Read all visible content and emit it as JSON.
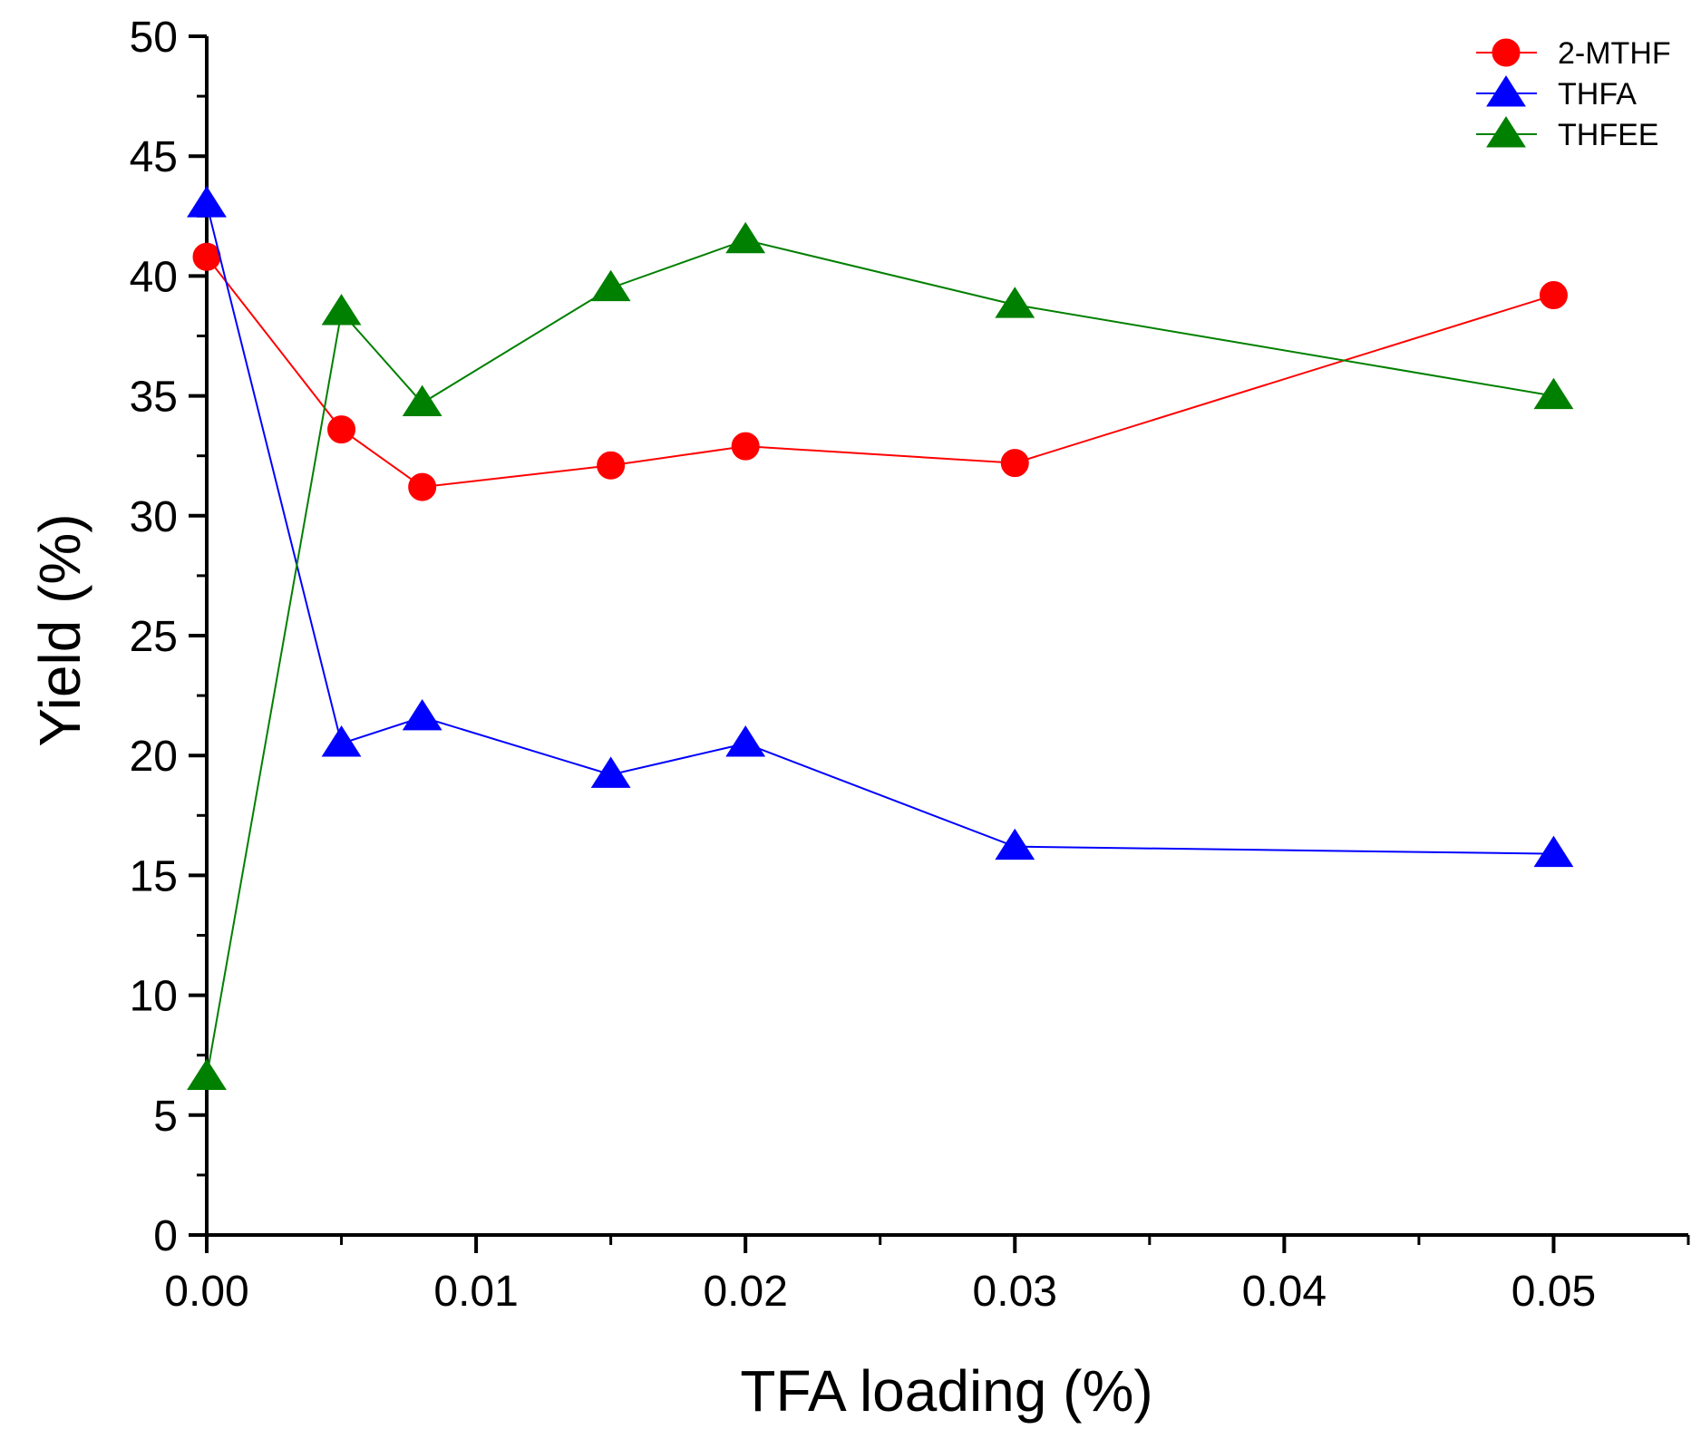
{
  "chart_data": {
    "type": "line",
    "title": "",
    "xlabel": "TFA loading (%)",
    "ylabel": "Yield (%)",
    "xlim": [
      0.0,
      0.055
    ],
    "ylim": [
      0,
      50
    ],
    "x_ticks": [
      0.0,
      0.01,
      0.02,
      0.03,
      0.04,
      0.05
    ],
    "x_tick_labels": [
      "0.00",
      "0.01",
      "0.02",
      "0.03",
      "0.04",
      "0.05"
    ],
    "x_minor_ticks": [
      0.005,
      0.015,
      0.025,
      0.035,
      0.045,
      0.055
    ],
    "y_ticks": [
      0,
      5,
      10,
      15,
      20,
      25,
      30,
      35,
      40,
      45,
      50
    ],
    "y_tick_labels": [
      "0",
      "5",
      "10",
      "15",
      "20",
      "25",
      "30",
      "35",
      "40",
      "45",
      "50"
    ],
    "y_minor_ticks": [
      2.5,
      7.5,
      12.5,
      17.5,
      22.5,
      27.5,
      32.5,
      37.5,
      42.5,
      47.5
    ],
    "grid": false,
    "legend_position": "top-right",
    "series": [
      {
        "name": "2-MTHF",
        "color": "#ff0000",
        "marker": "circle",
        "x": [
          0.0,
          0.005,
          0.008,
          0.015,
          0.02,
          0.03,
          0.05
        ],
        "y": [
          40.8,
          33.6,
          31.2,
          32.1,
          32.9,
          32.2,
          39.2
        ]
      },
      {
        "name": "THFA",
        "color": "#0000ff",
        "marker": "triangle",
        "x": [
          0.0,
          0.005,
          0.008,
          0.015,
          0.02,
          0.03,
          0.05
        ],
        "y": [
          43.0,
          20.5,
          21.6,
          19.2,
          20.5,
          16.2,
          15.9
        ]
      },
      {
        "name": "THFEE",
        "color": "#008000",
        "marker": "triangle",
        "x": [
          0.0,
          0.005,
          0.008,
          0.015,
          0.02,
          0.03,
          0.05
        ],
        "y": [
          6.6,
          38.5,
          34.7,
          39.5,
          41.5,
          38.8,
          35.0
        ]
      }
    ]
  }
}
